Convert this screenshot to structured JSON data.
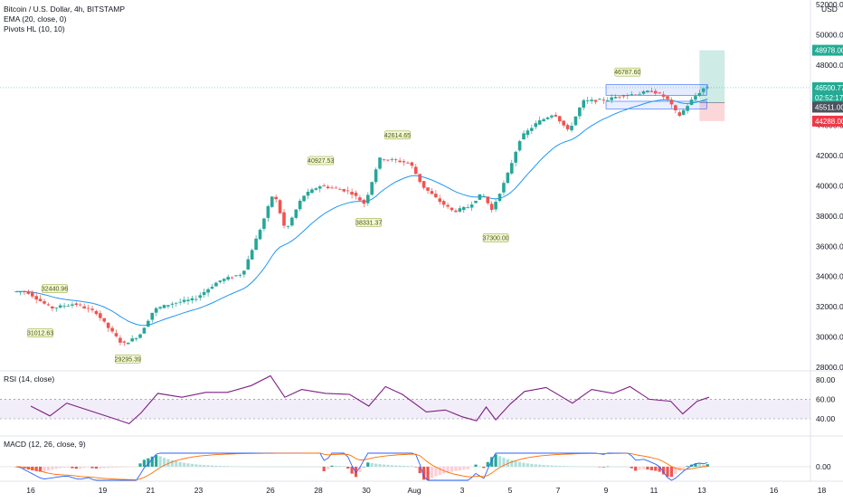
{
  "chart_data": [
    {
      "type": "candlestick",
      "title": "Bitcoin / U.S. Dollar, 4h, BITSTAMP",
      "indicators": [
        "EMA (20, close, 0)",
        "Pivots HL (10, 10)"
      ],
      "currency": "USD",
      "x_tick_labels": [
        "16",
        "19",
        "21",
        "23",
        "26",
        "28",
        "30",
        "Aug",
        "3",
        "5",
        "7",
        "9",
        "11",
        "13",
        "16",
        "18"
      ],
      "y_tick_labels": [
        "28000.00",
        "30000.00",
        "32000.00",
        "34000.00",
        "36000.00",
        "38000.00",
        "40000.00",
        "42000.00",
        "44000.00",
        "46000.00",
        "48000.00",
        "50000.00",
        "52000.00"
      ],
      "ylim": [
        27700,
        52300
      ],
      "path_anchors": [
        {
          "x": 16,
          "y": 33000
        },
        {
          "x": 17,
          "y": 31900
        },
        {
          "x": 18,
          "y": 32200
        },
        {
          "x": 18.9,
          "y": 31600
        },
        {
          "x": 19.4,
          "y": 30600
        },
        {
          "x": 20,
          "y": 29500
        },
        {
          "x": 20.7,
          "y": 30100
        },
        {
          "x": 21.3,
          "y": 31800
        },
        {
          "x": 22,
          "y": 32200
        },
        {
          "x": 23,
          "y": 32500
        },
        {
          "x": 24,
          "y": 33700
        },
        {
          "x": 25,
          "y": 34200
        },
        {
          "x": 25.8,
          "y": 37400
        },
        {
          "x": 26.3,
          "y": 39600
        },
        {
          "x": 26.8,
          "y": 37000
        },
        {
          "x": 27.5,
          "y": 39300
        },
        {
          "x": 28.2,
          "y": 40000
        },
        {
          "x": 29,
          "y": 39800
        },
        {
          "x": 29.5,
          "y": 39600
        },
        {
          "x": 30.1,
          "y": 38800
        },
        {
          "x": 30.7,
          "y": 41800
        },
        {
          "x": 31.3,
          "y": 41700
        },
        {
          "x": 32,
          "y": 41500
        },
        {
          "x": 32.5,
          "y": 40000
        },
        {
          "x": 33.2,
          "y": 39000
        },
        {
          "x": 33.8,
          "y": 38300
        },
        {
          "x": 34.4,
          "y": 38600
        },
        {
          "x": 35,
          "y": 39500
        },
        {
          "x": 35.4,
          "y": 38400
        },
        {
          "x": 36,
          "y": 40500
        },
        {
          "x": 36.6,
          "y": 43200
        },
        {
          "x": 37.3,
          "y": 44200
        },
        {
          "x": 38,
          "y": 44800
        },
        {
          "x": 38.6,
          "y": 43600
        },
        {
          "x": 39.2,
          "y": 45600
        },
        {
          "x": 40.2,
          "y": 45700
        },
        {
          "x": 40.8,
          "y": 46000
        },
        {
          "x": 41.5,
          "y": 46100
        },
        {
          "x": 42.1,
          "y": 46300
        },
        {
          "x": 42.7,
          "y": 45800
        },
        {
          "x": 43.2,
          "y": 44600
        },
        {
          "x": 43.8,
          "y": 45800
        },
        {
          "x": 44.3,
          "y": 46550
        }
      ],
      "price_labels": [
        {
          "price": 48978.0,
          "text": "48978.00",
          "role": "target",
          "color": "#22ab94"
        },
        {
          "price": 46500.77,
          "text": "46500.77",
          "role": "last",
          "color": "#22ab94",
          "countdown": "02:52:17"
        },
        {
          "price": 45511.0,
          "text": "45511.00",
          "role": "entry",
          "color": "#4c525e"
        },
        {
          "price": 44288.0,
          "text": "44288.00",
          "role": "stop",
          "color": "#f23645"
        }
      ],
      "pivots": [
        {
          "x": 17.0,
          "price": 32440.96,
          "text": "32440.96",
          "kind": "high"
        },
        {
          "x": 16.4,
          "price": 31012.63,
          "text": "31012.63",
          "kind": "low"
        },
        {
          "x": 20.05,
          "price": 29295.39,
          "text": "29295.39",
          "kind": "low"
        },
        {
          "x": 28.1,
          "price": 40927.53,
          "text": "40927.53",
          "kind": "high"
        },
        {
          "x": 30.1,
          "price": 38331.37,
          "text": "38331.37",
          "kind": "low"
        },
        {
          "x": 31.3,
          "price": 42614.65,
          "text": "42614.65",
          "kind": "high"
        },
        {
          "x": 35.4,
          "price": 37300.0,
          "text": "37300.00",
          "kind": "low"
        },
        {
          "x": 40.9,
          "price": 46787.6,
          "text": "46787.60",
          "kind": "high"
        }
      ],
      "position": {
        "entry": 45511.0,
        "target": 48978.0,
        "stop": 44288.0
      },
      "grid": false
    },
    {
      "type": "line",
      "title": "RSI (14, close)",
      "y_tick_labels": [
        "40.00",
        "60.00",
        "80.00"
      ],
      "ylim": [
        27,
        90
      ],
      "band": [
        40,
        60
      ],
      "path_anchors": [
        {
          "x": 16,
          "y": 53
        },
        {
          "x": 16.8,
          "y": 43
        },
        {
          "x": 17.5,
          "y": 56
        },
        {
          "x": 18.5,
          "y": 48
        },
        {
          "x": 19.5,
          "y": 40
        },
        {
          "x": 20.1,
          "y": 35
        },
        {
          "x": 20.6,
          "y": 46
        },
        {
          "x": 21.3,
          "y": 66
        },
        {
          "x": 22.3,
          "y": 62
        },
        {
          "x": 23.3,
          "y": 67
        },
        {
          "x": 24.2,
          "y": 67
        },
        {
          "x": 25.2,
          "y": 74
        },
        {
          "x": 26.0,
          "y": 84
        },
        {
          "x": 26.6,
          "y": 62
        },
        {
          "x": 27.3,
          "y": 70
        },
        {
          "x": 28.3,
          "y": 66
        },
        {
          "x": 29.3,
          "y": 65
        },
        {
          "x": 30.1,
          "y": 53
        },
        {
          "x": 30.8,
          "y": 73
        },
        {
          "x": 31.5,
          "y": 65
        },
        {
          "x": 32.5,
          "y": 47
        },
        {
          "x": 33.3,
          "y": 49
        },
        {
          "x": 34.0,
          "y": 42
        },
        {
          "x": 34.6,
          "y": 38
        },
        {
          "x": 35.0,
          "y": 52
        },
        {
          "x": 35.4,
          "y": 39
        },
        {
          "x": 36.0,
          "y": 55
        },
        {
          "x": 36.6,
          "y": 68
        },
        {
          "x": 37.5,
          "y": 72
        },
        {
          "x": 38.6,
          "y": 56
        },
        {
          "x": 39.4,
          "y": 70
        },
        {
          "x": 40.3,
          "y": 66
        },
        {
          "x": 41.0,
          "y": 73
        },
        {
          "x": 41.8,
          "y": 60
        },
        {
          "x": 42.7,
          "y": 58
        },
        {
          "x": 43.2,
          "y": 45
        },
        {
          "x": 43.8,
          "y": 58
        },
        {
          "x": 44.3,
          "y": 62
        }
      ]
    },
    {
      "type": "bar+line",
      "title": "MACD (12, 26, close, 9)",
      "y_tick_labels": [
        "0.00"
      ],
      "zero_value": 0
    }
  ]
}
